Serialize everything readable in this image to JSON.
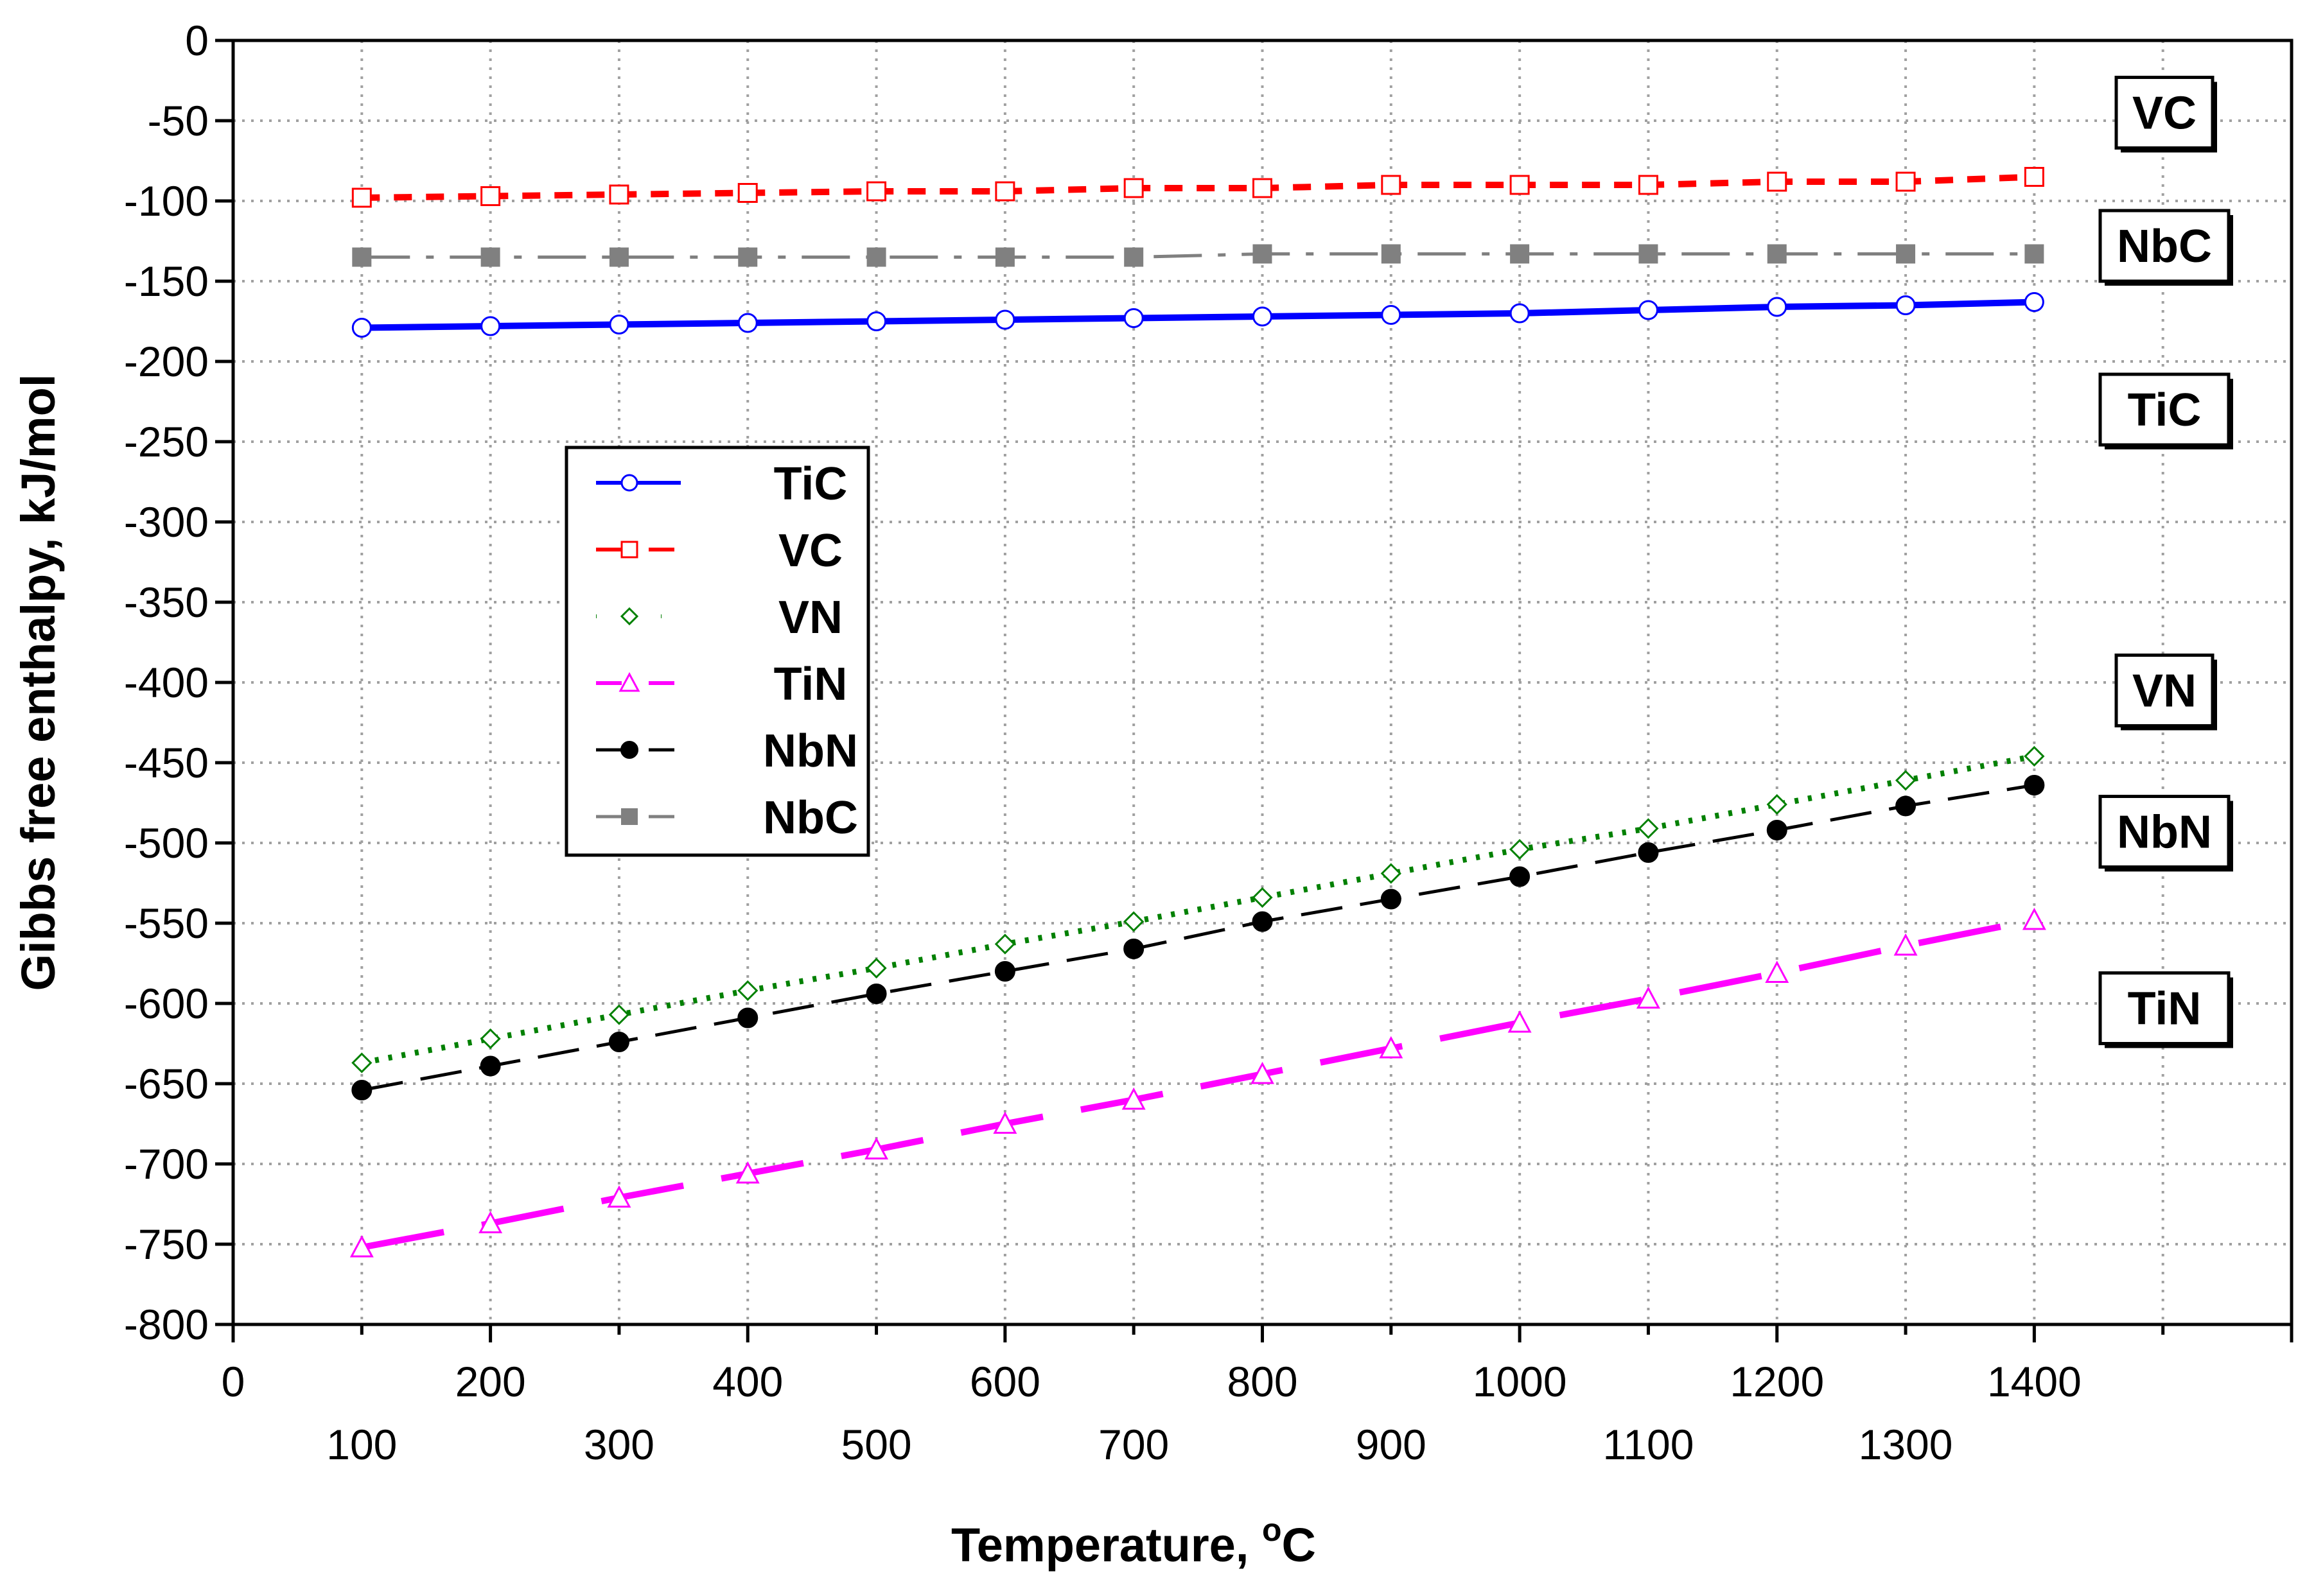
{
  "chart_data": {
    "type": "line",
    "title": "",
    "xlabel": "Temperature, ",
    "xlabel_degree": "o",
    "xlabel_unit": "C",
    "ylabel": "Gibbs free enthalpy,  kJ/mol",
    "xlim": [
      0,
      1600
    ],
    "ylim": [
      -800,
      0
    ],
    "grid": true,
    "x_ticks_row1": [
      0,
      200,
      400,
      600,
      800,
      1000,
      1200,
      1400
    ],
    "x_ticks_row2": [
      100,
      300,
      500,
      700,
      900,
      1100,
      1300
    ],
    "y_ticks": [
      0,
      -50,
      -100,
      -150,
      -200,
      -250,
      -300,
      -350,
      -400,
      -450,
      -500,
      -550,
      -600,
      -650,
      -700,
      -750,
      -800
    ],
    "x": [
      100,
      200,
      300,
      400,
      500,
      600,
      700,
      800,
      900,
      1000,
      1100,
      1200,
      1300,
      1400
    ],
    "series": [
      {
        "name": "TiC",
        "color": "#0000ff",
        "marker": "circle",
        "line": "solid",
        "values": [
          -179,
          -178,
          -177,
          -176,
          -175,
          -174,
          -173,
          -172,
          -171,
          -170,
          -168,
          -166,
          -165,
          -163
        ]
      },
      {
        "name": "VC",
        "color": "#ff0000",
        "marker": "square",
        "line": "short-dash",
        "values": [
          -98,
          -97,
          -96,
          -95,
          -94,
          -94,
          -92,
          -92,
          -90,
          -90,
          -90,
          -88,
          -88,
          -85
        ]
      },
      {
        "name": "VN",
        "color": "#008000",
        "marker": "diamond",
        "line": "dotted",
        "values": [
          -637,
          -622,
          -607,
          -592,
          -578,
          -563,
          -549,
          -534,
          -519,
          -504,
          -491,
          -476,
          -461,
          -446
        ]
      },
      {
        "name": "TiN",
        "color": "#ff00ff",
        "marker": "triangle",
        "line": "long-dash",
        "values": [
          -752,
          -737,
          -721,
          -706,
          -691,
          -675,
          -660,
          -644,
          -628,
          -612,
          -597,
          -581,
          -564,
          -548
        ]
      },
      {
        "name": "NbN",
        "color": "#000000",
        "marker": "filled-circle",
        "line": "dash",
        "values": [
          -654,
          -639,
          -624,
          -609,
          -594,
          -580,
          -566,
          -549,
          -535,
          -521,
          -506,
          -492,
          -477,
          -464
        ]
      },
      {
        "name": "NbC",
        "color": "#808080",
        "marker": "filled-square",
        "line": "dash-dot",
        "values": [
          -135,
          -135,
          -135,
          -135,
          -135,
          -135,
          -135,
          -133,
          -133,
          -133,
          -133,
          -133,
          -133,
          -133
        ]
      }
    ],
    "legend": {
      "placement": "center-left",
      "entries": [
        "TiC",
        "VC",
        "VN",
        "TiN",
        "NbN",
        "NbC"
      ]
    },
    "annotations": [
      {
        "text": "VC",
        "y": -45
      },
      {
        "text": "NbC",
        "y": -128
      },
      {
        "text": "TiC",
        "y": -230
      },
      {
        "text": "VN",
        "y": -405
      },
      {
        "text": "NbN",
        "y": -493
      },
      {
        "text": "TiN",
        "y": -603
      }
    ]
  }
}
